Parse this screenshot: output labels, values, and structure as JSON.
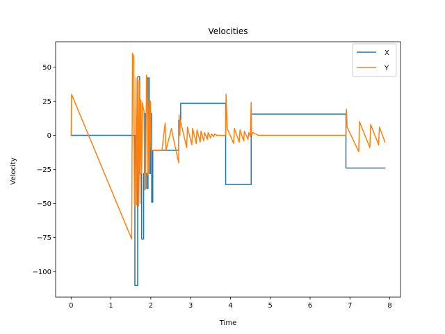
{
  "chart_data": {
    "type": "line",
    "title": "Velocities",
    "xlabel": "Time",
    "ylabel": "Velocity",
    "xlim": [
      -0.39,
      8.27
    ],
    "ylim": [
      -118.5,
      68.5
    ],
    "xticks": [
      0,
      1,
      2,
      3,
      4,
      5,
      6,
      7,
      8
    ],
    "yticks": [
      -100,
      -75,
      -50,
      -25,
      0,
      25,
      50
    ],
    "ytick_labels": [
      "−100",
      "−75",
      "−50",
      "−25",
      "0",
      "25",
      "50"
    ],
    "grid": false,
    "legend": "top-right",
    "series": [
      {
        "name": "X",
        "color": "#1f77b4",
        "x": [
          0,
          1.5,
          1.55,
          1.6,
          1.6,
          1.67,
          1.67,
          1.72,
          1.72,
          1.77,
          1.77,
          1.82,
          1.82,
          1.84,
          1.84,
          1.86,
          1.86,
          1.9,
          1.9,
          1.93,
          1.93,
          1.96,
          1.96,
          1.99,
          1.99,
          2.02,
          2.02,
          2.05,
          2.05,
          2.1,
          2.1,
          2.7,
          2.7,
          2.75,
          2.75,
          3.88,
          3.88,
          4.52,
          4.52,
          6.9,
          6.9,
          7.88
        ],
        "y": [
          0,
          0,
          0,
          0,
          -110,
          -110,
          43,
          43,
          -28,
          -28,
          -76,
          -76,
          -28,
          -28,
          16,
          16,
          -28,
          -28,
          -39,
          -39,
          42,
          42,
          -28,
          -28,
          16,
          16,
          -49,
          -49,
          -11,
          -11,
          -11,
          -11,
          11,
          11,
          23.5,
          23.5,
          -36,
          -36,
          15.5,
          15.5,
          -24,
          -24
        ],
        "values": [
          0,
          0,
          0,
          0,
          -110,
          -110,
          43,
          43,
          -28,
          -28,
          -76,
          -76,
          -28,
          -28,
          16,
          16,
          -28,
          -28,
          -39,
          -39,
          42,
          42,
          -28,
          -28,
          16,
          16,
          -49,
          -49,
          -11,
          -11,
          -11,
          -11,
          11,
          11,
          23.5,
          23.5,
          -36,
          -36,
          15.5,
          15.5,
          -24,
          -24
        ]
      },
      {
        "name": "Y",
        "color": "#ff7f0e",
        "x": [
          0,
          0.01,
          1.52,
          1.54,
          1.57,
          1.59,
          1.61,
          1.63,
          1.65,
          1.67,
          1.69,
          1.71,
          1.73,
          1.75,
          1.77,
          1.79,
          1.81,
          1.83,
          1.85,
          1.87,
          1.89,
          1.91,
          1.93,
          1.95,
          1.97,
          1.99,
          2.01,
          2.03,
          2.05,
          2.07,
          2.09,
          2.1,
          2.28,
          2.36,
          2.38,
          2.52,
          2.55,
          2.7,
          2.71,
          2.73,
          2.74,
          2.9,
          2.92,
          3.03,
          3.05,
          3.14,
          3.16,
          3.24,
          3.26,
          3.33,
          3.35,
          3.42,
          3.44,
          3.5,
          3.52,
          3.58,
          3.6,
          3.66,
          3.68,
          3.75,
          3.88,
          3.89,
          3.92,
          4.08,
          4.1,
          4.22,
          4.24,
          4.33,
          4.35,
          4.44,
          4.46,
          4.5,
          4.52,
          4.53,
          4.56,
          4.7,
          5.5,
          6.9,
          6.91,
          6.93,
          7.22,
          7.24,
          7.5,
          7.52,
          7.72,
          7.74,
          7.88
        ],
        "y": [
          0,
          30,
          -76,
          60,
          58,
          -50,
          -52,
          42,
          -51,
          43,
          -52,
          40,
          -50,
          26,
          -28,
          24,
          20,
          18,
          -40,
          -39,
          44,
          42,
          -29,
          25,
          -28,
          25,
          -10,
          -11,
          -11,
          -11,
          -11,
          -11,
          -11,
          9,
          -11,
          5,
          0,
          -20,
          15,
          0,
          11,
          -9,
          6,
          -7,
          5,
          -6,
          4,
          -5,
          3,
          -4,
          2,
          -3,
          2,
          -2,
          1,
          -1,
          1,
          0,
          0,
          0,
          0,
          30,
          5,
          -6,
          5,
          -5,
          4,
          -4,
          3,
          -3,
          2,
          -1,
          24,
          0,
          2,
          0,
          0,
          0,
          19,
          6,
          -12,
          10,
          -9,
          8,
          -7,
          6,
          -5
        ],
        "values": [
          0,
          30,
          -76,
          60,
          58,
          -50,
          -52,
          42,
          -51,
          43,
          -52,
          40,
          -50,
          26,
          -28,
          24,
          20,
          18,
          -40,
          -39,
          44,
          42,
          -29,
          25,
          -28,
          25,
          -10,
          -11,
          -11,
          -11,
          -11,
          -11,
          -11,
          9,
          -11,
          5,
          0,
          -20,
          15,
          0,
          11,
          -9,
          6,
          -7,
          5,
          -6,
          4,
          -5,
          3,
          -4,
          2,
          -3,
          2,
          -2,
          1,
          -1,
          1,
          0,
          0,
          0,
          0,
          30,
          5,
          -6,
          5,
          -5,
          4,
          -4,
          3,
          -3,
          2,
          -1,
          24,
          0,
          2,
          0,
          0,
          0,
          19,
          6,
          -12,
          10,
          -9,
          8,
          -7,
          6,
          -5
        ]
      }
    ]
  }
}
